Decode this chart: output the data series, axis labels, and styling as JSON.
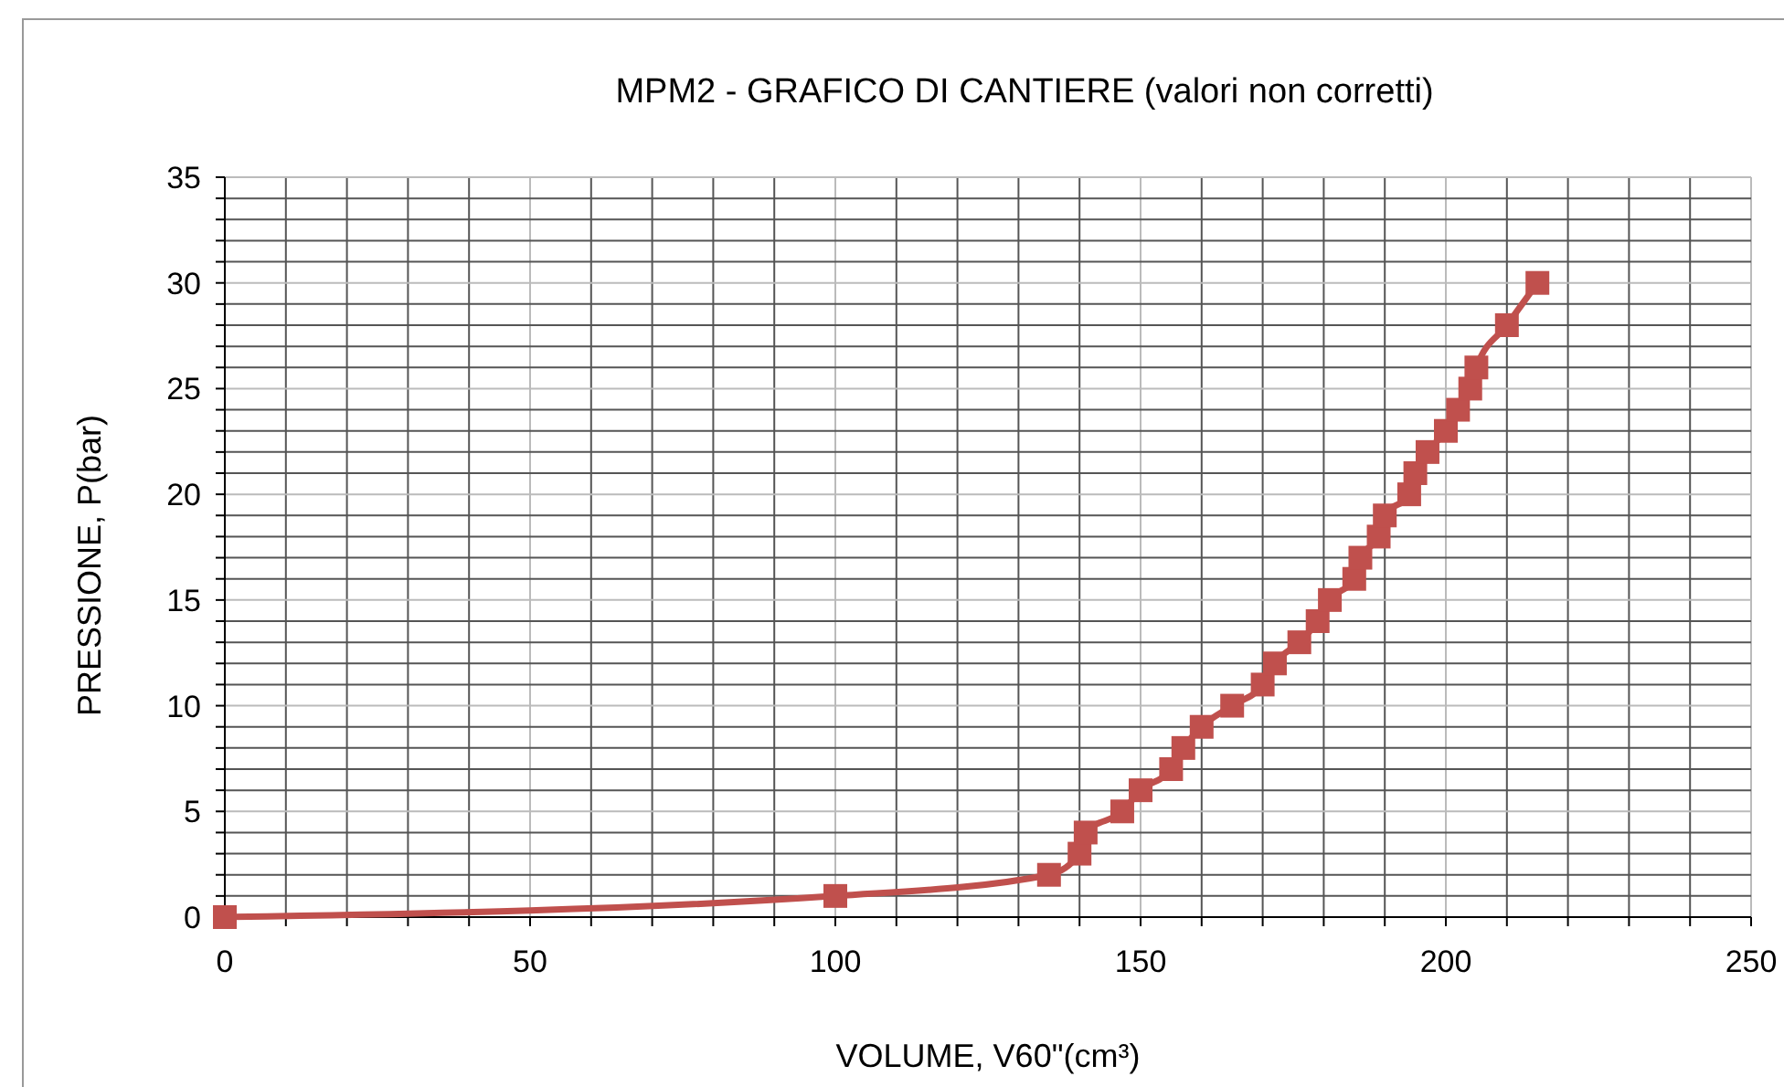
{
  "chart_data": {
    "type": "line",
    "title": "MPM2 - GRAFICO DI CANTIERE (valori non corretti)",
    "xlabel": "VOLUME, V60\"(cm³)",
    "ylabel": "PRESSIONE, P(bar)",
    "series": [
      {
        "color": "#c0504d",
        "x": [
          0,
          100,
          135,
          140,
          141,
          147,
          150,
          155,
          157,
          160,
          165,
          170,
          172,
          176,
          179,
          181,
          185,
          186,
          189,
          190,
          194,
          195,
          197,
          200,
          202,
          204,
          205,
          210,
          215
        ],
        "values": [
          0,
          1,
          2,
          3,
          4,
          5,
          6,
          7,
          8,
          9,
          10,
          11,
          12,
          13,
          14,
          15,
          16,
          17,
          18,
          19,
          20,
          21,
          22,
          23,
          24,
          25,
          26,
          28,
          30
        ]
      }
    ],
    "xlim": [
      0,
      250
    ],
    "xticks": [
      0,
      {
        "value": 10,
        "label": null
      },
      {
        "value": 20,
        "label": null
      },
      {
        "value": 30,
        "label": null
      },
      {
        "value": 40,
        "label": null
      },
      50,
      {
        "value": 60,
        "label": null
      },
      {
        "value": 70,
        "label": null
      },
      {
        "value": 80,
        "label": null
      },
      {
        "value": 90,
        "label": null
      },
      100,
      {
        "value": 110,
        "label": null
      },
      {
        "value": 120,
        "label": null
      },
      {
        "value": 130,
        "label": null
      },
      {
        "value": 140,
        "label": null
      },
      150,
      {
        "value": 160,
        "label": null
      },
      {
        "value": 170,
        "label": null
      },
      {
        "value": 180,
        "label": null
      },
      {
        "value": 190,
        "label": null
      },
      200,
      {
        "value": 210,
        "label": null
      },
      {
        "value": 220,
        "label": null
      },
      {
        "value": 230,
        "label": null
      },
      {
        "value": 240,
        "label": null
      },
      250
    ],
    "ylim": [
      0,
      35
    ],
    "yticks": [
      0,
      {
        "value": 1,
        "label": null
      },
      {
        "value": 2,
        "label": null
      },
      {
        "value": 3,
        "label": null
      },
      {
        "value": 4,
        "label": null
      },
      5,
      {
        "value": 6,
        "label": null
      },
      {
        "value": 7,
        "label": null
      },
      {
        "value": 8,
        "label": null
      },
      {
        "value": 9,
        "label": null
      },
      10,
      {
        "value": 11,
        "label": null
      },
      {
        "value": 12,
        "label": null
      },
      {
        "value": 13,
        "label": null
      },
      {
        "value": 14,
        "label": null
      },
      15,
      {
        "value": 16,
        "label": null
      },
      {
        "value": 17,
        "label": null
      },
      {
        "value": 18,
        "label": null
      },
      {
        "value": 19,
        "label": null
      },
      20,
      {
        "value": 21,
        "label": null
      },
      {
        "value": 22,
        "label": null
      },
      {
        "value": 23,
        "label": null
      },
      {
        "value": 24,
        "label": null
      },
      25,
      {
        "value": 26,
        "label": null
      },
      {
        "value": 27,
        "label": null
      },
      {
        "value": 28,
        "label": null
      },
      {
        "value": 29,
        "label": null
      },
      30,
      {
        "value": 31,
        "label": null
      },
      {
        "value": 32,
        "label": null
      },
      {
        "value": 33,
        "label": null
      },
      {
        "value": 34,
        "label": null
      },
      35
    ],
    "grid": true,
    "marker": "square",
    "line_style": "solid"
  }
}
